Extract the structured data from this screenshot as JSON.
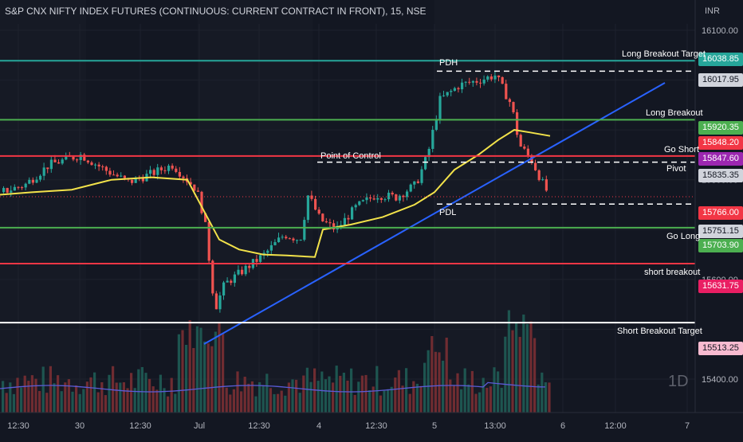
{
  "title": "S&P CNX NIFTY INDEX FUTURES (CONTINUOUS: CURRENT CONTRACT IN FRONT), 15, NSE",
  "currency": "INR",
  "interval_watermark": "1D",
  "chart_data": {
    "type": "candlestick",
    "symbol": "S&P CNX NIFTY INDEX FUTURES (CONTINUOUS: CURRENT CONTRACT IN FRONT)",
    "timeframe": "15",
    "exchange": "NSE",
    "x_tick_labels": [
      "12:30",
      "30",
      "12:30",
      "Jul",
      "12:30",
      "4",
      "12:30",
      "5",
      "13:00",
      "6",
      "12:00",
      "7"
    ],
    "y_tick_labels": [
      "16100.00",
      "15800.00",
      "15600.00",
      "15400.00"
    ],
    "ylim": [
      15400,
      16100
    ],
    "horizontal_levels": [
      {
        "label": "Long Breakout Target",
        "price": 16038.85,
        "color": "#26a69a"
      },
      {
        "label": "PDH",
        "price": 16017.95,
        "color": "#ffffff",
        "style": "dashed"
      },
      {
        "label": "Long Breakout",
        "price": 15920.35,
        "color": "#4caf50"
      },
      {
        "label": "Go Short",
        "price": 15847.6,
        "color": "#f23645"
      },
      {
        "label": "Pivot",
        "price": 15835.35,
        "color": "#ffffff",
        "style": "dashed"
      },
      {
        "label": "Point of Control",
        "price": 15835.35,
        "color": "#ffffff",
        "style": "dashed"
      },
      {
        "label": "PDL",
        "price": 15751.15,
        "color": "#ffffff",
        "style": "dashed"
      },
      {
        "label": "Go Long",
        "price": 15703.9,
        "color": "#4caf50"
      },
      {
        "label": "short breakout",
        "price": 15631.75,
        "color": "#f23645"
      },
      {
        "label": "Short  Breakout Target",
        "price": 15513.25,
        "color": "#ffffff"
      }
    ],
    "last_price": 15766.0,
    "ma_value": 15848.2,
    "price_tags": [
      {
        "price": "16038.85",
        "bg": "#26a69a",
        "fg": "#ffffff"
      },
      {
        "price": "16017.95",
        "bg": "#d1d4dc",
        "fg": "#131722"
      },
      {
        "price": "15920.35",
        "bg": "#4caf50",
        "fg": "#ffffff"
      },
      {
        "price": "15848.20",
        "bg": "#f23645",
        "fg": "#ffffff"
      },
      {
        "price": "15847.60",
        "bg": "#9c27b0",
        "fg": "#ffffff"
      },
      {
        "price": "15835.35",
        "bg": "#d1d4dc",
        "fg": "#131722"
      },
      {
        "price": "15766.00",
        "bg": "#f23645",
        "fg": "#ffffff"
      },
      {
        "price": "15751.15",
        "bg": "#d1d4dc",
        "fg": "#131722"
      },
      {
        "price": "15703.90",
        "bg": "#4caf50",
        "fg": "#ffffff"
      },
      {
        "price": "15631.75",
        "bg": "#e91e63",
        "fg": "#ffffff"
      },
      {
        "price": "15513.25",
        "bg": "#f8bbd0",
        "fg": "#131722"
      }
    ],
    "colors": {
      "up": "#26a69a",
      "down": "#ef5350",
      "ma_line": "#f2e24a",
      "trend_line": "#2962ff",
      "volume_ma": "#5b5bd6",
      "background": "#131722"
    },
    "grid": true
  }
}
